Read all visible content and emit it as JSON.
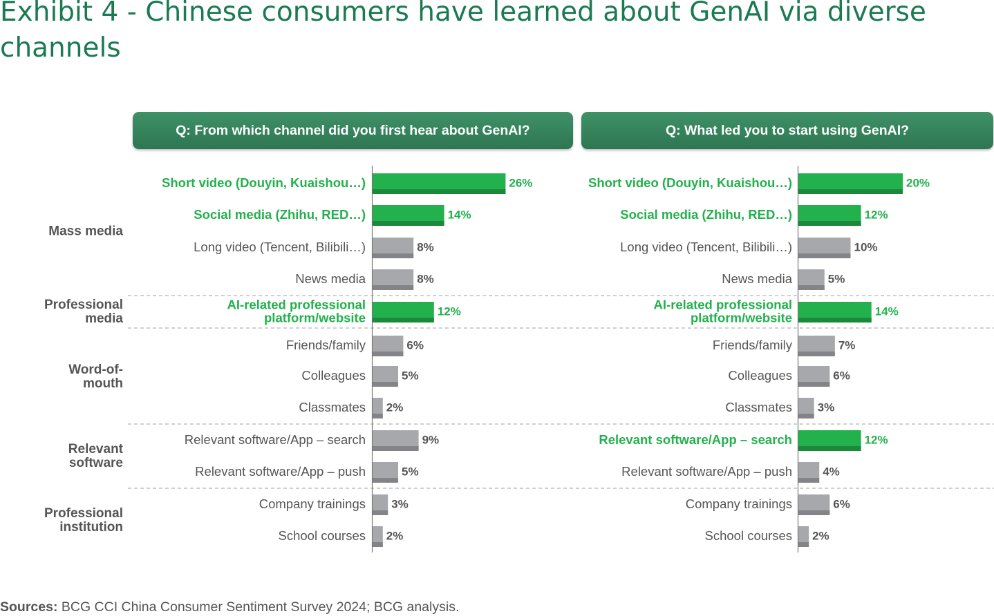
{
  "title": "Exhibit 4 - Chinese consumers have learned about GenAI via diverse channels",
  "colors": {
    "highlight": "#22b14c",
    "highlight_dark": "#1a8a3a",
    "neutral": "#a7a8ab",
    "neutral_dark": "#838488",
    "highlight_text": "#22b14c",
    "label_text": "#555555",
    "title": "#1b7a52",
    "question_box": "#3a8a62"
  },
  "chart_data": {
    "type": "bar",
    "orientation": "horizontal",
    "groups": [
      {
        "label": "Mass media",
        "start": 0,
        "end": 3
      },
      {
        "label": "Professional media",
        "start": 4,
        "end": 4
      },
      {
        "label": "Word-of-mouth",
        "start": 5,
        "end": 7
      },
      {
        "label": "Relevant software",
        "start": 8,
        "end": 9
      },
      {
        "label": "Professional institution",
        "start": 10,
        "end": 11
      }
    ],
    "panels": [
      {
        "question": "Q: From which channel did you first hear about GenAI?",
        "categories": [
          "Short video (Douyin, Kuaishou…)",
          "Social media (Zhihu, RED…)",
          "Long video (Tencent, Bilibili…)",
          "News media",
          "AI-related professional platform/website",
          "Friends/family",
          "Colleagues",
          "Classmates",
          "Relevant software/App – search",
          "Relevant software/App – push",
          "Company trainings",
          "School courses"
        ],
        "values": [
          26,
          14,
          8,
          8,
          12,
          6,
          5,
          2,
          9,
          5,
          3,
          2
        ],
        "value_labels": [
          "26%",
          "14%",
          "8%",
          "8%",
          "12%",
          "6%",
          "5%",
          "2%",
          "9%",
          "5%",
          "3%",
          "2%"
        ],
        "highlight": [
          true,
          true,
          false,
          false,
          true,
          false,
          false,
          false,
          false,
          false,
          false,
          false
        ]
      },
      {
        "question": "Q: What led you to start using GenAI?",
        "categories": [
          "Short video (Douyin, Kuaishou…)",
          "Social media (Zhihu, RED…)",
          "Long video (Tencent, Bilibili…)",
          "News media",
          "AI-related professional platform/website",
          "Friends/family",
          "Colleagues",
          "Classmates",
          "Relevant software/App – search",
          "Relevant software/App – push",
          "Company trainings",
          "School courses"
        ],
        "values": [
          20,
          12,
          10,
          5,
          14,
          7,
          6,
          3,
          12,
          4,
          6,
          2
        ],
        "value_labels": [
          "20%",
          "12%",
          "10%",
          "5%",
          "14%",
          "7%",
          "6%",
          "3%",
          "12%",
          "4%",
          "6%",
          "2%"
        ],
        "highlight": [
          true,
          true,
          false,
          false,
          true,
          false,
          false,
          false,
          true,
          false,
          false,
          false
        ]
      }
    ]
  },
  "sources": {
    "label": "Sources:",
    "text": " BCG CCI China Consumer Sentiment Survey 2024; BCG analysis."
  }
}
